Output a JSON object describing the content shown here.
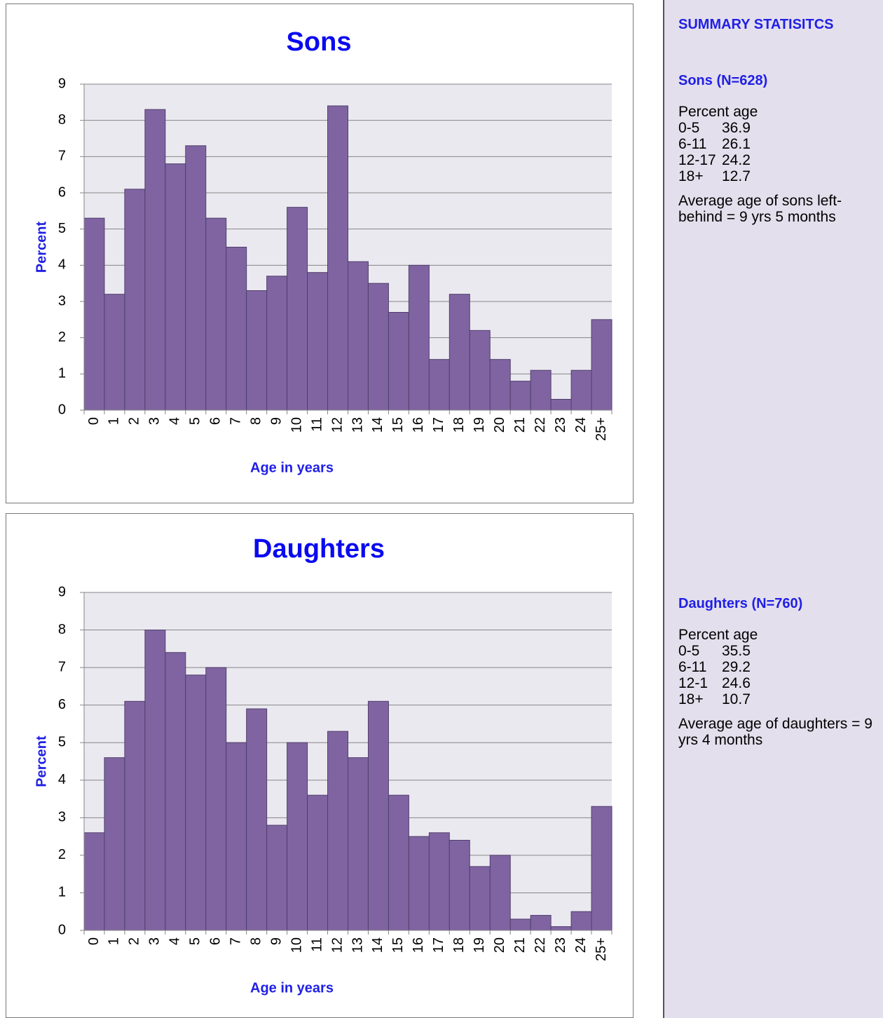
{
  "chart_data": [
    {
      "type": "bar",
      "title": "Sons",
      "x_label": "Age in years",
      "y_label": "Percent",
      "categories": [
        "0",
        "1",
        "2",
        "3",
        "4",
        "5",
        "6",
        "7",
        "8",
        "9",
        "10",
        "11",
        "12",
        "13",
        "14",
        "15",
        "16",
        "17",
        "18",
        "19",
        "20",
        "21",
        "22",
        "23",
        "24",
        "25+"
      ],
      "values": [
        5.3,
        3.2,
        6.1,
        8.3,
        6.8,
        7.3,
        5.3,
        4.5,
        3.3,
        3.7,
        5.6,
        3.8,
        8.4,
        4.1,
        3.5,
        2.7,
        4.0,
        1.4,
        3.2,
        2.2,
        1.4,
        0.8,
        1.1,
        0.3,
        1.1,
        2.5
      ],
      "color": "#8064a2",
      "ylim": [
        0,
        9
      ],
      "yticks": [
        0,
        1,
        2,
        3,
        4,
        5,
        6,
        7,
        8,
        9
      ],
      "grid": true
    },
    {
      "type": "bar",
      "title": "Daughters",
      "x_label": "Age in years",
      "y_label": "Percent",
      "categories": [
        "0",
        "1",
        "2",
        "3",
        "4",
        "5",
        "6",
        "7",
        "8",
        "9",
        "10",
        "11",
        "12",
        "13",
        "14",
        "15",
        "16",
        "17",
        "18",
        "19",
        "20",
        "21",
        "22",
        "23",
        "24",
        "25+"
      ],
      "values": [
        2.6,
        4.6,
        6.1,
        8.0,
        7.4,
        6.8,
        7.0,
        5.0,
        5.9,
        2.8,
        5.0,
        3.6,
        5.3,
        4.6,
        6.1,
        3.6,
        2.5,
        2.6,
        2.4,
        1.7,
        2.0,
        0.3,
        0.4,
        0.1,
        0.5,
        3.3
      ],
      "color": "#8064a2",
      "ylim": [
        0,
        9
      ],
      "yticks": [
        0,
        1,
        2,
        3,
        4,
        5,
        6,
        7,
        8,
        9
      ],
      "grid": true
    }
  ],
  "summary": {
    "title": "SUMMARY STATISITCS",
    "sections": [
      {
        "heading": "Sons (N=628)",
        "table_header": "Percent age",
        "rows": [
          [
            "0-5",
            "36.9"
          ],
          [
            "6-11",
            "26.1"
          ],
          [
            "12-17",
            "24.2"
          ],
          [
            "18+",
            "12.7"
          ]
        ],
        "note": "Average age of sons left-behind = 9 yrs 5 months"
      },
      {
        "heading": "Daughters (N=760)",
        "table_header": "Percent age",
        "rows": [
          [
            "0-5",
            "35.5"
          ],
          [
            "6-11",
            "29.2"
          ],
          [
            "12-1",
            "24.6"
          ],
          [
            "18+",
            "10.7"
          ]
        ],
        "note": "Average age of daughters =  9 yrs 4 months"
      }
    ]
  }
}
